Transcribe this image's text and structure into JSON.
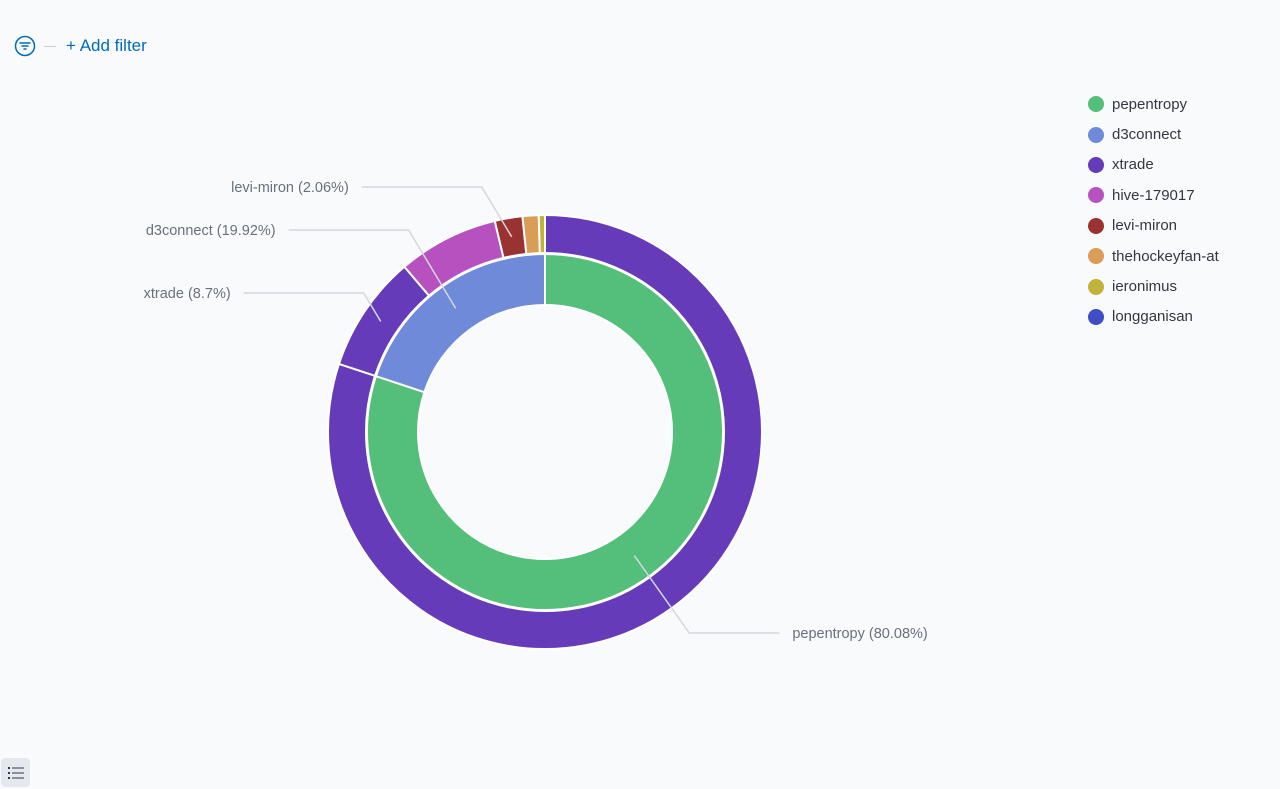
{
  "filter_bar": {
    "icon": "filter-icon",
    "add_filter_label": "+ Add filter"
  },
  "legend": {
    "toggle_icon": "list-icon",
    "items": [
      {
        "label": "pepentropy",
        "color": "#54bf7a"
      },
      {
        "label": "d3connect",
        "color": "#6e8ad9"
      },
      {
        "label": "xtrade",
        "color": "#653bb9"
      },
      {
        "label": "hive-179017",
        "color": "#b851c0"
      },
      {
        "label": "levi-miron",
        "color": "#9b3232"
      },
      {
        "label": "thehockeyfan-at",
        "color": "#d99d58"
      },
      {
        "label": "ieronimus",
        "color": "#c1b23b"
      },
      {
        "label": "longganisan",
        "color": "#3f4ec4"
      }
    ]
  },
  "chart_data": {
    "type": "pie",
    "inner_ring": {
      "slices": [
        {
          "name": "pepentropy",
          "percent": 80.08,
          "color": "#54bf7a"
        },
        {
          "name": "d3connect",
          "percent": 19.92,
          "color": "#6e8ad9"
        }
      ]
    },
    "outer_ring": {
      "slices": [
        {
          "name": "xtrade",
          "percent": 80.08,
          "color": "#653bb9"
        },
        {
          "name": "xtrade",
          "percent": 8.7,
          "color": "#653bb9"
        },
        {
          "name": "hive-179017",
          "percent": 7.5,
          "color": "#b851c0"
        },
        {
          "name": "levi-miron",
          "percent": 2.06,
          "color": "#9b3232"
        },
        {
          "name": "thehockeyfan-at",
          "percent": 1.2,
          "color": "#d99d58"
        },
        {
          "name": "ieronimus",
          "percent": 0.46,
          "color": "#c1b23b"
        }
      ]
    },
    "labels": [
      {
        "text": "pepentropy (80.08%)"
      },
      {
        "text": "d3connect (19.92%)"
      },
      {
        "text": "xtrade (8.7%)"
      },
      {
        "text": "levi-miron (2.06%)"
      }
    ]
  }
}
